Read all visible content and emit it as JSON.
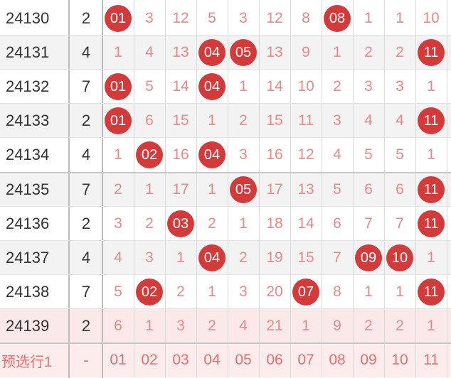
{
  "table": {
    "rows": [
      {
        "issue": "24130",
        "sum": "2",
        "cells": [
          "01",
          "3",
          "12",
          "5",
          "3",
          "12",
          "8",
          "08",
          "1",
          "1",
          "10"
        ]
      },
      {
        "issue": "24131",
        "sum": "4",
        "cells": [
          "1",
          "4",
          "13",
          "04",
          "05",
          "13",
          "9",
          "1",
          "2",
          "2",
          "11"
        ]
      },
      {
        "issue": "24132",
        "sum": "7",
        "cells": [
          "01",
          "5",
          "14",
          "04",
          "1",
          "14",
          "10",
          "2",
          "3",
          "3",
          "1"
        ]
      },
      {
        "issue": "24133",
        "sum": "2",
        "cells": [
          "01",
          "6",
          "15",
          "1",
          "2",
          "15",
          "11",
          "3",
          "4",
          "4",
          "11"
        ]
      },
      {
        "issue": "24134",
        "sum": "4",
        "cells": [
          "1",
          "02",
          "16",
          "04",
          "3",
          "16",
          "12",
          "4",
          "5",
          "5",
          "1"
        ]
      },
      {
        "issue": "24135",
        "sum": "7",
        "cells": [
          "2",
          "1",
          "17",
          "1",
          "05",
          "17",
          "13",
          "5",
          "6",
          "6",
          "11"
        ]
      },
      {
        "issue": "24136",
        "sum": "2",
        "cells": [
          "3",
          "2",
          "03",
          "2",
          "1",
          "18",
          "14",
          "6",
          "7",
          "7",
          "11"
        ]
      },
      {
        "issue": "24137",
        "sum": "4",
        "cells": [
          "4",
          "3",
          "1",
          "04",
          "2",
          "19",
          "15",
          "7",
          "09",
          "10",
          "1"
        ]
      },
      {
        "issue": "24138",
        "sum": "7",
        "cells": [
          "5",
          "02",
          "2",
          "1",
          "3",
          "20",
          "07",
          "8",
          "1",
          "1",
          "11"
        ]
      },
      {
        "issue": "24139",
        "sum": "2",
        "cells": [
          "6",
          "1",
          "3",
          "2",
          "4",
          "21",
          "1",
          "9",
          "2",
          "2",
          "1"
        ]
      }
    ],
    "hits": [
      [
        0,
        7
      ],
      [
        3,
        4,
        10
      ],
      [
        0,
        3
      ],
      [
        0,
        10
      ],
      [
        1,
        3
      ],
      [
        4,
        10
      ],
      [
        2,
        10
      ],
      [
        3,
        8,
        9
      ],
      [
        1,
        6,
        10
      ],
      []
    ],
    "preselect": {
      "label": "预选行1",
      "dash": "-",
      "numbers": [
        "01",
        "02",
        "03",
        "04",
        "05",
        "06",
        "07",
        "08",
        "09",
        "10",
        "11"
      ]
    }
  },
  "colors": {
    "ball": "#d43a3a",
    "miss_text": "#e58b8b",
    "preselect_bg": "#fdecec"
  }
}
